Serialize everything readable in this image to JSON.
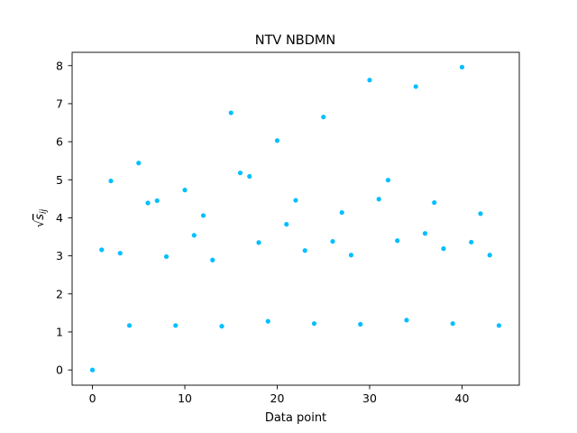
{
  "chart_data": {
    "type": "scatter",
    "title": "NTV NBDMN",
    "xlabel": "Data point",
    "ylabel": "√s_ij",
    "ylabel_parts": {
      "radical": "√",
      "base": "s",
      "subscript": "ij"
    },
    "xlim": [
      -2.2,
      46.2
    ],
    "ylim": [
      -0.4,
      8.35
    ],
    "xticks": [
      0,
      10,
      20,
      30,
      40
    ],
    "yticks": [
      0,
      1,
      2,
      3,
      4,
      5,
      6,
      7,
      8
    ],
    "grid": false,
    "marker_color": "#00bfff",
    "x": [
      0,
      1,
      2,
      3,
      4,
      5,
      6,
      7,
      8,
      9,
      10,
      11,
      12,
      13,
      14,
      15,
      16,
      17,
      18,
      19,
      20,
      21,
      22,
      23,
      24,
      25,
      26,
      27,
      28,
      29,
      30,
      31,
      32,
      33,
      34,
      35,
      36,
      37,
      38,
      39,
      40,
      41,
      42,
      43,
      44
    ],
    "y": [
      0.0,
      3.16,
      4.97,
      3.07,
      1.17,
      5.44,
      4.39,
      4.45,
      2.98,
      1.17,
      4.73,
      3.54,
      4.06,
      2.89,
      1.15,
      6.76,
      5.18,
      5.09,
      3.35,
      1.28,
      6.03,
      3.83,
      4.46,
      3.14,
      1.22,
      6.65,
      3.38,
      4.14,
      3.02,
      1.2,
      7.62,
      4.49,
      4.99,
      3.4,
      1.31,
      7.45,
      3.59,
      4.4,
      3.19,
      1.22,
      7.96,
      3.36,
      4.11,
      3.02,
      1.17
    ]
  }
}
